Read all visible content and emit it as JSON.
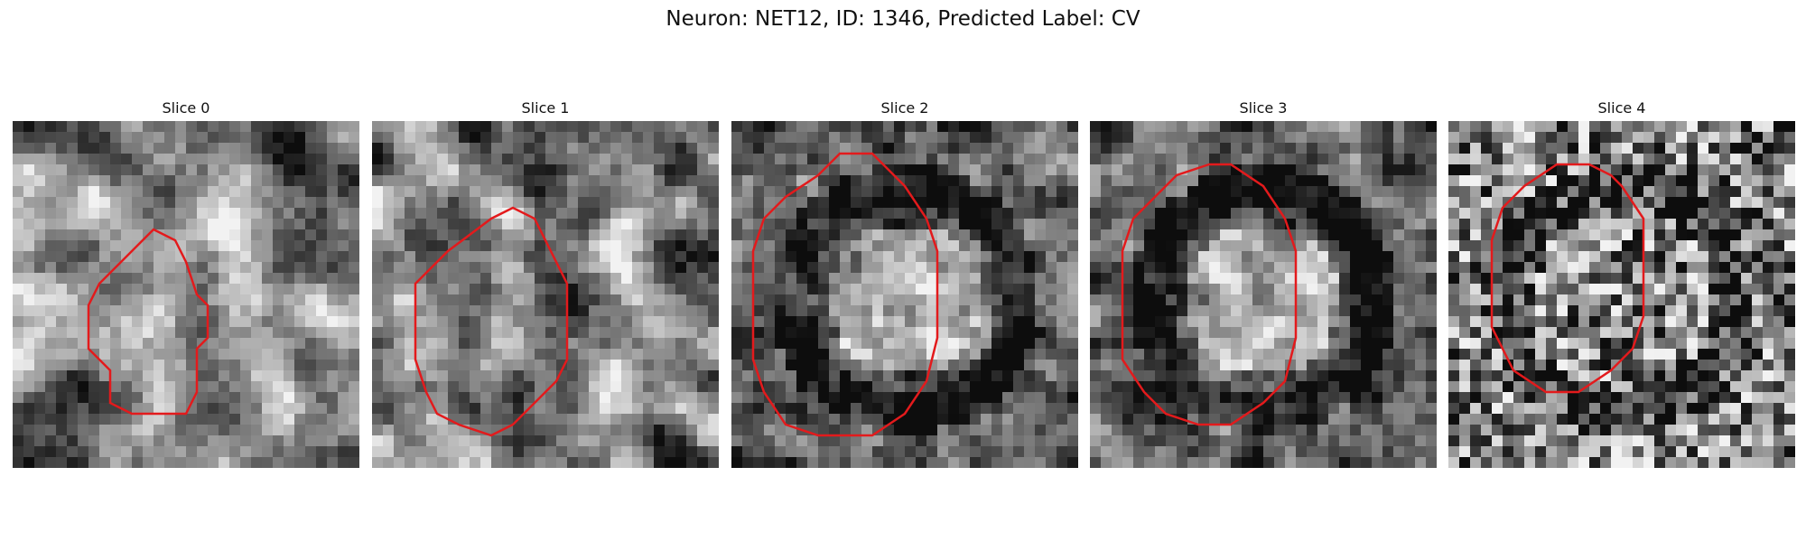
{
  "figure": {
    "title": "Neuron: NET12, ID: 1346, Predicted Label: CV"
  },
  "colors": {
    "contour": "#e31a1c",
    "background": "#ffffff"
  },
  "panels": [
    {
      "title": "Slice 0",
      "contour_grid": [
        [
          10,
          13
        ],
        [
          8,
          15
        ],
        [
          7,
          17
        ],
        [
          7,
          21
        ],
        [
          9,
          23
        ],
        [
          9,
          26
        ],
        [
          11,
          27
        ],
        [
          16,
          27
        ],
        [
          17,
          25
        ],
        [
          17,
          21
        ],
        [
          18,
          20
        ],
        [
          18,
          17
        ],
        [
          17,
          16
        ],
        [
          16,
          13
        ],
        [
          15,
          11
        ],
        [
          13,
          10
        ]
      ]
    },
    {
      "title": "Slice 1",
      "contour_grid": [
        [
          13,
          8
        ],
        [
          11,
          9
        ],
        [
          7,
          12
        ],
        [
          4,
          15
        ],
        [
          4,
          22
        ],
        [
          5,
          25
        ],
        [
          6,
          27
        ],
        [
          8,
          28
        ],
        [
          11,
          29
        ],
        [
          13,
          28
        ],
        [
          15,
          26
        ],
        [
          17,
          24
        ],
        [
          18,
          22
        ],
        [
          18,
          15
        ],
        [
          17,
          13
        ],
        [
          16,
          11
        ],
        [
          15,
          9
        ]
      ]
    },
    {
      "title": "Slice 2",
      "contour_grid": [
        [
          10,
          3
        ],
        [
          8,
          5
        ],
        [
          5,
          7
        ],
        [
          3,
          9
        ],
        [
          2,
          12
        ],
        [
          2,
          22
        ],
        [
          3,
          25
        ],
        [
          5,
          28
        ],
        [
          8,
          29
        ],
        [
          13,
          29
        ],
        [
          16,
          27
        ],
        [
          18,
          24
        ],
        [
          19,
          20
        ],
        [
          19,
          12
        ],
        [
          18,
          9
        ],
        [
          16,
          6
        ],
        [
          13,
          3
        ]
      ]
    },
    {
      "title": "Slice 3",
      "contour_grid": [
        [
          11,
          4
        ],
        [
          8,
          5
        ],
        [
          6,
          7
        ],
        [
          4,
          9
        ],
        [
          3,
          12
        ],
        [
          3,
          22
        ],
        [
          5,
          25
        ],
        [
          7,
          27
        ],
        [
          10,
          28
        ],
        [
          13,
          28
        ],
        [
          16,
          26
        ],
        [
          18,
          24
        ],
        [
          19,
          20
        ],
        [
          19,
          12
        ],
        [
          18,
          9
        ],
        [
          16,
          6
        ],
        [
          13,
          4
        ]
      ]
    },
    {
      "title": "Slice 4",
      "contour_grid": [
        [
          13,
          4
        ],
        [
          10,
          4
        ],
        [
          7,
          6
        ],
        [
          5,
          8
        ],
        [
          4,
          11
        ],
        [
          4,
          19
        ],
        [
          6,
          23
        ],
        [
          9,
          25
        ],
        [
          12,
          25
        ],
        [
          15,
          23
        ],
        [
          17,
          21
        ],
        [
          18,
          18
        ],
        [
          18,
          9
        ],
        [
          16,
          6
        ],
        [
          15,
          5
        ]
      ]
    }
  ]
}
